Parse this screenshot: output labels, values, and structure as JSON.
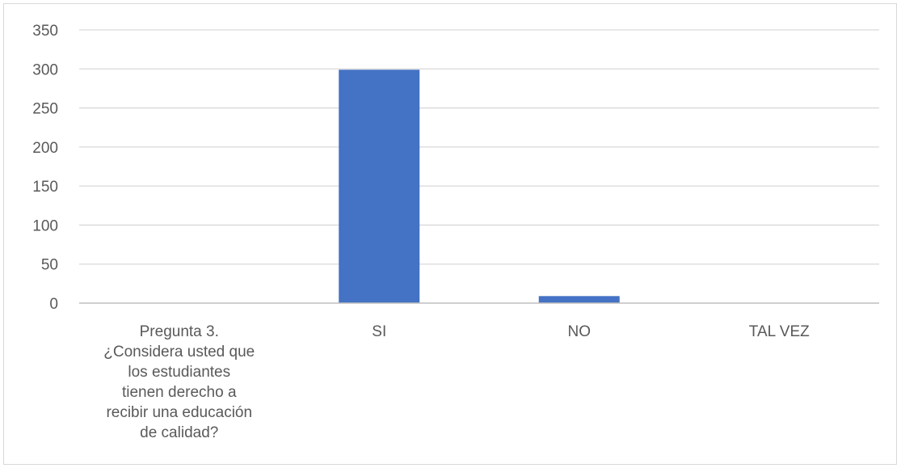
{
  "chart_data": {
    "type": "bar",
    "title": "",
    "xlabel": "",
    "ylabel": "",
    "categories": [
      "Pregunta 3. ¿Considera usted que los estudiantes tienen derecho a recibir una educación de calidad?",
      "SI",
      "NO",
      "TAL VEZ"
    ],
    "category_lines": [
      [
        "Pregunta 3.",
        "¿Considera usted que",
        "los estudiantes",
        "tienen derecho a",
        "recibir una educación",
        "de calidad?"
      ],
      [
        "SI"
      ],
      [
        "NO"
      ],
      [
        "TAL VEZ"
      ]
    ],
    "values": [
      0,
      299,
      9,
      0
    ],
    "ylim": [
      0,
      350
    ],
    "yticks": [
      0,
      50,
      100,
      150,
      200,
      250,
      300,
      350
    ],
    "grid": true,
    "legend": "none",
    "bar_color": "#4472c4",
    "grid_color": "#d9d9d9",
    "axis_color": "#bfbfbf"
  }
}
